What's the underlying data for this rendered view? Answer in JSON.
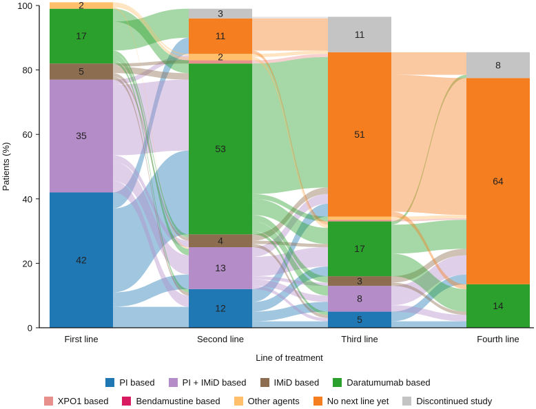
{
  "chart_data": {
    "type": "sankey",
    "xlabel": "Line of treatment",
    "ylabel": "Patients (%)",
    "ylim": [
      0,
      100
    ],
    "yticks": [
      0,
      20,
      40,
      60,
      80,
      100
    ],
    "stages": [
      "First line",
      "Second line",
      "Third line",
      "Fourth line"
    ],
    "categories": [
      {
        "key": "pi",
        "name": "PI based",
        "color": "#1f77b4"
      },
      {
        "key": "pi_imid",
        "name": "PI + IMiD based",
        "color": "#b48cc8"
      },
      {
        "key": "imid",
        "name": "IMiD based",
        "color": "#8c6d4f"
      },
      {
        "key": "dara",
        "name": "Daratumumab based",
        "color": "#2ca02c"
      },
      {
        "key": "xpo1",
        "name": "XPO1 based",
        "color": "#e8908c"
      },
      {
        "key": "benda",
        "name": "Bendamustine based",
        "color": "#d81b60"
      },
      {
        "key": "other",
        "name": "Other agents",
        "color": "#ffbf6b"
      },
      {
        "key": "nonext",
        "name": "No next line yet",
        "color": "#f57f20"
      },
      {
        "key": "disc",
        "name": "Discontinued study",
        "color": "#c4c4c4"
      }
    ],
    "stacks": [
      [
        {
          "cat": "pi",
          "value": 42,
          "label": "42"
        },
        {
          "cat": "pi_imid",
          "value": 35,
          "label": "35"
        },
        {
          "cat": "imid",
          "value": 5,
          "label": "5"
        },
        {
          "cat": "dara",
          "value": 17,
          "label": "17"
        },
        {
          "cat": "other",
          "value": 2,
          "label": "2"
        }
      ],
      [
        {
          "cat": "pi",
          "value": 12,
          "label": "12"
        },
        {
          "cat": "pi_imid",
          "value": 13,
          "label": "13"
        },
        {
          "cat": "imid",
          "value": 4,
          "label": "4"
        },
        {
          "cat": "dara",
          "value": 53,
          "label": "53"
        },
        {
          "cat": "xpo1",
          "value": 1,
          "label": ""
        },
        {
          "cat": "other",
          "value": 2,
          "label": "2"
        },
        {
          "cat": "nonext",
          "value": 11,
          "label": "11"
        },
        {
          "cat": "disc",
          "value": 3,
          "label": "3"
        }
      ],
      [
        {
          "cat": "pi",
          "value": 5,
          "label": "5"
        },
        {
          "cat": "pi_imid",
          "value": 8,
          "label": "8"
        },
        {
          "cat": "imid",
          "value": 3,
          "label": "3"
        },
        {
          "cat": "dara",
          "value": 17,
          "label": "17"
        },
        {
          "cat": "xpo1",
          "value": 0.5,
          "label": ""
        },
        {
          "cat": "other",
          "value": 1,
          "label": ""
        },
        {
          "cat": "nonext",
          "value": 51,
          "label": "51"
        },
        {
          "cat": "disc",
          "value": 11,
          "label": "11"
        }
      ],
      [
        {
          "cat": "dara",
          "value": 13.5,
          "label": "14"
        },
        {
          "cat": "nonext",
          "value": 64,
          "label": "64"
        },
        {
          "cat": "disc",
          "value": 8,
          "label": "8"
        }
      ]
    ],
    "flows": [
      {
        "stage": 0,
        "from": "pi",
        "to": "pi",
        "value": 6.5
      },
      {
        "stage": 0,
        "from": "pi",
        "to": "pi_imid",
        "value": 4.5
      },
      {
        "stage": 0,
        "from": "pi",
        "to": "dara",
        "value": 26
      },
      {
        "stage": 0,
        "from": "pi",
        "to": "nonext",
        "value": 5
      },
      {
        "stage": 0,
        "from": "pi_imid",
        "to": "pi",
        "value": 3.5
      },
      {
        "stage": 0,
        "from": "pi_imid",
        "to": "pi_imid",
        "value": 6
      },
      {
        "stage": 0,
        "from": "pi_imid",
        "to": "imid",
        "value": 2
      },
      {
        "stage": 0,
        "from": "pi_imid",
        "to": "dara",
        "value": 22
      },
      {
        "stage": 0,
        "from": "pi_imid",
        "to": "other",
        "value": 1.5
      },
      {
        "stage": 0,
        "from": "imid",
        "to": "pi",
        "value": 1
      },
      {
        "stage": 0,
        "from": "imid",
        "to": "imid",
        "value": 1
      },
      {
        "stage": 0,
        "from": "imid",
        "to": "dara",
        "value": 2
      },
      {
        "stage": 0,
        "from": "imid",
        "to": "xpo1",
        "value": 1
      },
      {
        "stage": 0,
        "from": "dara",
        "to": "pi",
        "value": 1
      },
      {
        "stage": 0,
        "from": "dara",
        "to": "pi_imid",
        "value": 2
      },
      {
        "stage": 0,
        "from": "dara",
        "to": "imid",
        "value": 1
      },
      {
        "stage": 0,
        "from": "dara",
        "to": "nonext",
        "value": 6
      },
      {
        "stage": 0,
        "from": "dara",
        "to": "disc",
        "value": 3
      },
      {
        "stage": 0,
        "from": "dara",
        "to": "dara",
        "value": 4
      },
      {
        "stage": 0,
        "from": "other",
        "to": "pi_imid",
        "value": 0.5
      },
      {
        "stage": 0,
        "from": "other",
        "to": "dara",
        "value": 1
      },
      {
        "stage": 0,
        "from": "other",
        "to": "other",
        "value": 0.5
      },
      {
        "stage": 1,
        "from": "pi",
        "to": "pi",
        "value": 2
      },
      {
        "stage": 1,
        "from": "pi",
        "to": "pi_imid",
        "value": 3
      },
      {
        "stage": 1,
        "from": "pi",
        "to": "dara",
        "value": 3
      },
      {
        "stage": 1,
        "from": "pi",
        "to": "nonext",
        "value": 4
      },
      {
        "stage": 1,
        "from": "pi_imid",
        "to": "pi",
        "value": 1
      },
      {
        "stage": 1,
        "from": "pi_imid",
        "to": "pi_imid",
        "value": 2
      },
      {
        "stage": 1,
        "from": "pi_imid",
        "to": "imid",
        "value": 1
      },
      {
        "stage": 1,
        "from": "pi_imid",
        "to": "dara",
        "value": 6
      },
      {
        "stage": 1,
        "from": "pi_imid",
        "to": "nonext",
        "value": 3
      },
      {
        "stage": 1,
        "from": "imid",
        "to": "pi",
        "value": 1
      },
      {
        "stage": 1,
        "from": "imid",
        "to": "dara",
        "value": 1
      },
      {
        "stage": 1,
        "from": "imid",
        "to": "nonext",
        "value": 2
      },
      {
        "stage": 1,
        "from": "dara",
        "to": "pi",
        "value": 1
      },
      {
        "stage": 1,
        "from": "dara",
        "to": "pi_imid",
        "value": 3
      },
      {
        "stage": 1,
        "from": "dara",
        "to": "imid",
        "value": 2
      },
      {
        "stage": 1,
        "from": "dara",
        "to": "dara",
        "value": 5
      },
      {
        "stage": 1,
        "from": "dara",
        "to": "xpo1",
        "value": 0.5
      },
      {
        "stage": 1,
        "from": "dara",
        "to": "other",
        "value": 1
      },
      {
        "stage": 1,
        "from": "dara",
        "to": "nonext",
        "value": 40.5
      },
      {
        "stage": 1,
        "from": "xpo1",
        "to": "nonext",
        "value": 1
      },
      {
        "stage": 1,
        "from": "other",
        "to": "dara",
        "value": 1
      },
      {
        "stage": 1,
        "from": "other",
        "to": "nonext",
        "value": 0.5
      },
      {
        "stage": 1,
        "from": "other",
        "to": "disc",
        "value": 0.5
      },
      {
        "stage": 1,
        "from": "nonext",
        "to": "dara",
        "value": 1
      },
      {
        "stage": 1,
        "from": "nonext",
        "to": "disc",
        "value": 10
      },
      {
        "stage": 1,
        "from": "disc",
        "to": "disc",
        "value": 0.5
      },
      {
        "stage": 2,
        "from": "pi",
        "to": "dara",
        "value": 2
      },
      {
        "stage": 2,
        "from": "pi",
        "to": "nonext",
        "value": 3
      },
      {
        "stage": 2,
        "from": "pi_imid",
        "to": "dara",
        "value": 2
      },
      {
        "stage": 2,
        "from": "pi_imid",
        "to": "nonext",
        "value": 6
      },
      {
        "stage": 2,
        "from": "imid",
        "to": "dara",
        "value": 1
      },
      {
        "stage": 2,
        "from": "imid",
        "to": "nonext",
        "value": 2
      },
      {
        "stage": 2,
        "from": "dara",
        "to": "dara",
        "value": 7
      },
      {
        "stage": 2,
        "from": "dara",
        "to": "nonext",
        "value": 9
      },
      {
        "stage": 2,
        "from": "dara",
        "to": "disc",
        "value": 1
      },
      {
        "stage": 2,
        "from": "xpo1",
        "to": "nonext",
        "value": 0.5
      },
      {
        "stage": 2,
        "from": "other",
        "to": "nonext",
        "value": 1
      },
      {
        "stage": 2,
        "from": "nonext",
        "to": "dara",
        "value": 1.5
      },
      {
        "stage": 2,
        "from": "nonext",
        "to": "nonext",
        "value": 42.5
      },
      {
        "stage": 2,
        "from": "nonext",
        "to": "disc",
        "value": 7
      },
      {
        "stage": 2,
        "from": "disc",
        "to": "disc",
        "value": 0
      },
      {
        "stage": 2,
        "from": "disc",
        "to": "nonext",
        "value": 0
      }
    ]
  }
}
